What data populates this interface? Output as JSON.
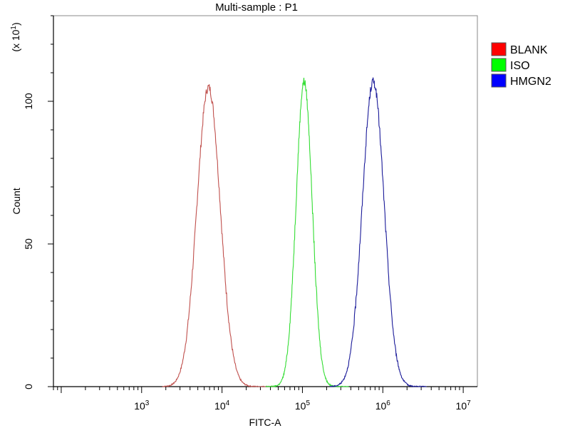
{
  "chart_data": {
    "type": "line",
    "title": "Multi-sample : P1",
    "xlabel": "FITC-A",
    "ylabel": "Count",
    "y_multiplier_label": "(x 10",
    "y_multiplier_exp": "1",
    "y_multiplier_close": ")",
    "x_scale": "log",
    "xlim": [
      80,
      15000000
    ],
    "ylim": [
      0,
      130
    ],
    "x_ticks": [
      {
        "base": "10",
        "exp": "3",
        "value": 1000
      },
      {
        "base": "10",
        "exp": "4",
        "value": 10000
      },
      {
        "base": "10",
        "exp": "5",
        "value": 100000
      },
      {
        "base": "10",
        "exp": "6",
        "value": 1000000
      },
      {
        "base": "10",
        "exp": "7",
        "value": 10000000
      }
    ],
    "y_ticks": [
      {
        "label": "0",
        "value": 0
      },
      {
        "label": "50",
        "value": 50
      },
      {
        "label": "100",
        "value": 100
      }
    ],
    "grid": false,
    "legend_position": "right",
    "series": [
      {
        "name": "BLANK",
        "color": "#c0504d",
        "legend_color": "#ff0000",
        "peak_x": 6800,
        "peak_y": 105,
        "sigma_log": 0.145,
        "x_range": [
          1800,
          45000
        ]
      },
      {
        "name": "ISO",
        "color": "#33dd33",
        "legend_color": "#00ff00",
        "peak_x": 105000,
        "peak_y": 107,
        "sigma_log": 0.1,
        "x_range": [
          35000,
          380000
        ]
      },
      {
        "name": "HMGN2",
        "color": "#1a1a99",
        "legend_color": "#0000ff",
        "peak_x": 760000,
        "peak_y": 107,
        "sigma_log": 0.135,
        "x_range": [
          220000,
          3500000
        ]
      }
    ]
  }
}
